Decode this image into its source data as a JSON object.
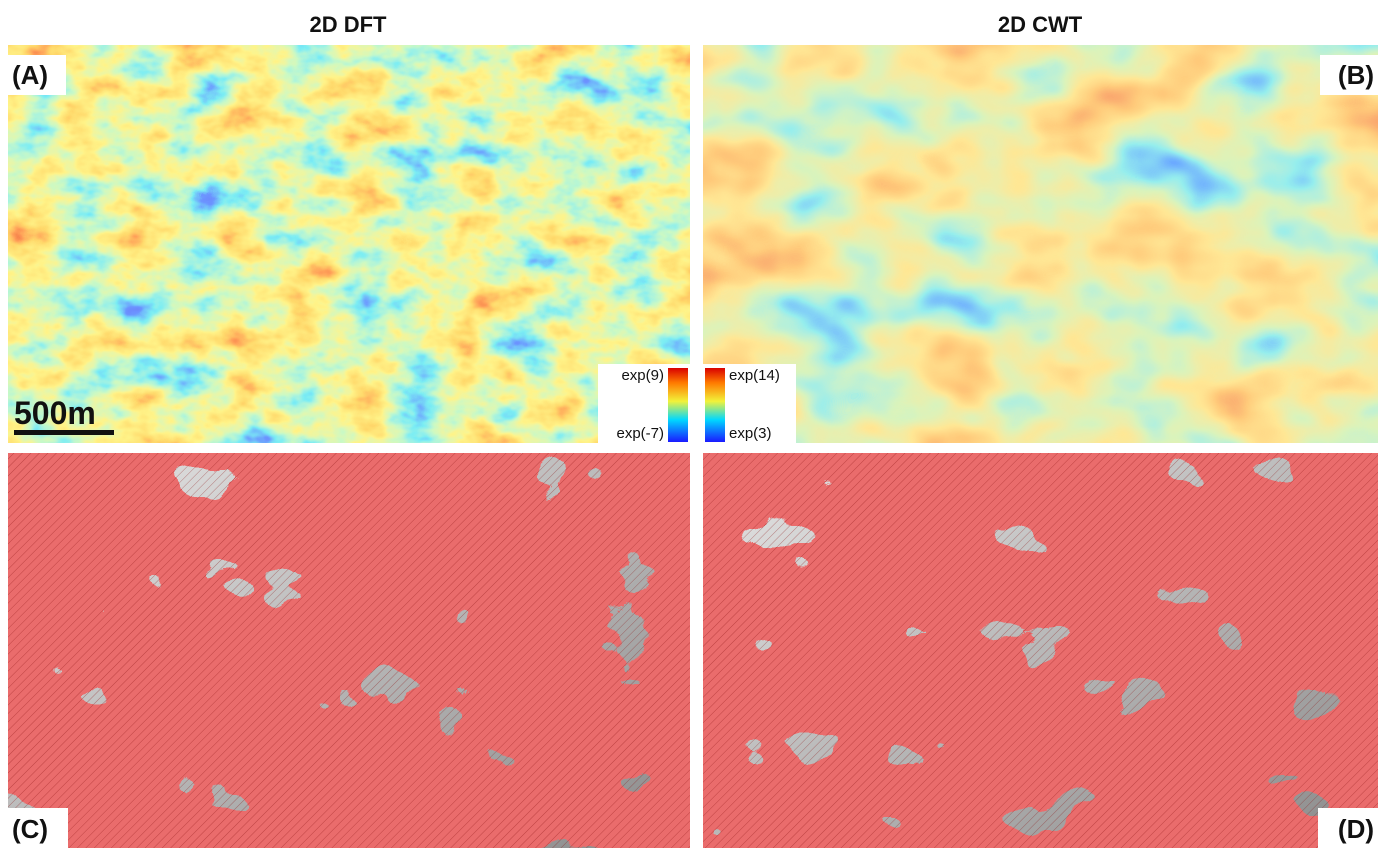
{
  "columns": [
    {
      "title": "2D DFT"
    },
    {
      "title": "2D CWT"
    }
  ],
  "panels": [
    {
      "label": "(A)"
    },
    {
      "label": "(B)"
    },
    {
      "label": "(C)"
    },
    {
      "label": "(D)"
    }
  ],
  "scale_bar": "500m",
  "colorbars": [
    {
      "max": "exp(9)",
      "min": "exp(-7)"
    },
    {
      "max": "exp(14)",
      "min": "exp(3)"
    }
  ]
}
